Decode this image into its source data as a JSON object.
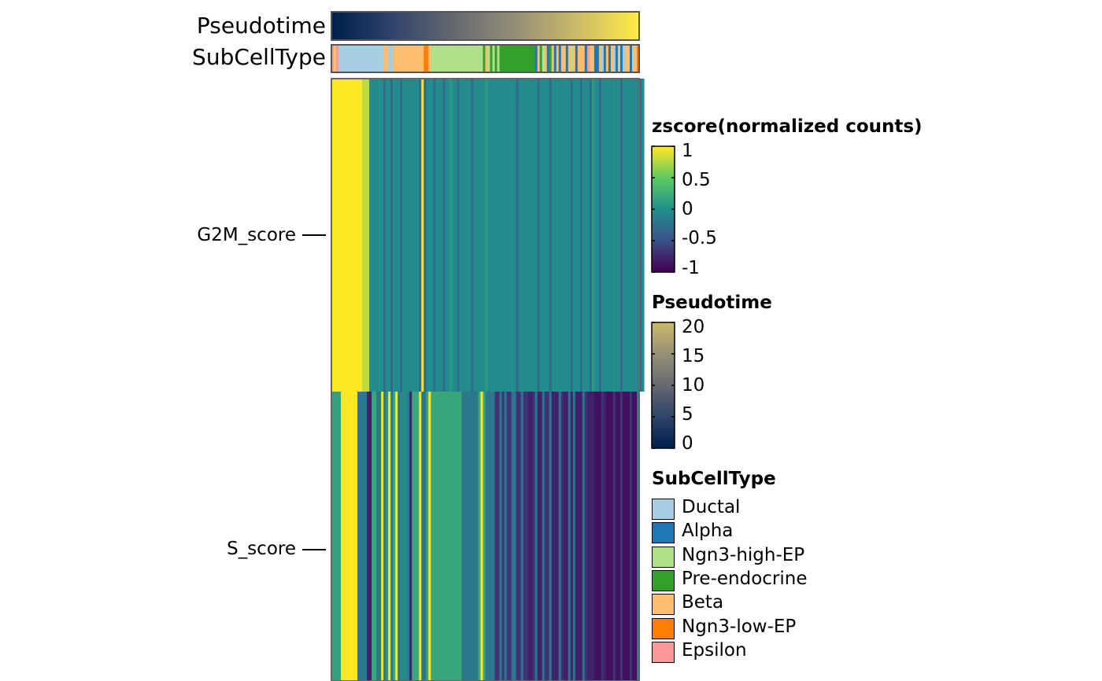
{
  "chart_data": {
    "type": "heatmap",
    "annotations": [
      {
        "name": "Pseudotime",
        "type": "continuous",
        "colormap": [
          "#00204D",
          "#31446B",
          "#666970",
          "#958F78",
          "#CBBA69",
          "#FFEA46"
        ]
      },
      {
        "name": "SubCellType",
        "type": "categorical"
      }
    ],
    "rows": [
      "G2M_score",
      "S_score"
    ],
    "n_cells": 130,
    "cell_pseudotime_range": [
      0,
      20
    ],
    "cell_subcelltype": [
      "Epsilon",
      "Beta",
      "Epsilon",
      "Ductal",
      "Ductal",
      "Ductal",
      "Ductal",
      "Ductal",
      "Ductal",
      "Ductal",
      "Ductal",
      "Ductal",
      "Ductal",
      "Ductal",
      "Ductal",
      "Ductal",
      "Ductal",
      "Ductal",
      "Ductal",
      "Ductal",
      "Ductal",
      "Ductal",
      "Beta",
      "Beta",
      "Ductal",
      "Ductal",
      "Beta",
      "Beta",
      "Beta",
      "Beta",
      "Beta",
      "Beta",
      "Beta",
      "Beta",
      "Beta",
      "Beta",
      "Beta",
      "Beta",
      "Beta",
      "Ngn3-low-EP",
      "Ngn3-low-EP",
      "Beta",
      "Ngn3-high-EP",
      "Ngn3-high-EP",
      "Ngn3-high-EP",
      "Ngn3-high-EP",
      "Ngn3-high-EP",
      "Ngn3-high-EP",
      "Ngn3-high-EP",
      "Ngn3-high-EP",
      "Ngn3-high-EP",
      "Ngn3-high-EP",
      "Ngn3-high-EP",
      "Ngn3-high-EP",
      "Ngn3-high-EP",
      "Ngn3-high-EP",
      "Ngn3-high-EP",
      "Ngn3-high-EP",
      "Ngn3-high-EP",
      "Ngn3-high-EP",
      "Ngn3-high-EP",
      "Ngn3-high-EP",
      "Ngn3-high-EP",
      "Ngn3-high-EP",
      "Pre-endocrine",
      "Beta",
      "Ngn3-high-EP",
      "Pre-endocrine",
      "Ngn3-high-EP",
      "Pre-endocrine",
      "Ngn3-high-EP",
      "Pre-endocrine",
      "Pre-endocrine",
      "Pre-endocrine",
      "Pre-endocrine",
      "Pre-endocrine",
      "Pre-endocrine",
      "Pre-endocrine",
      "Pre-endocrine",
      "Pre-endocrine",
      "Pre-endocrine",
      "Pre-endocrine",
      "Pre-endocrine",
      "Pre-endocrine",
      "Pre-endocrine",
      "Pre-endocrine",
      "Alpha",
      "Beta",
      "Pre-endocrine",
      "Ngn3-high-EP",
      "Beta",
      "Alpha",
      "Pre-endocrine",
      "Beta",
      "Alpha",
      "Beta",
      "Alpha",
      "Beta",
      "Beta",
      "Alpha",
      "Beta",
      "Ngn3-high-EP",
      "Beta",
      "Alpha",
      "Beta",
      "Beta",
      "Beta",
      "Alpha",
      "Epsilon",
      "Beta",
      "Beta",
      "Alpha",
      "Alpha",
      "Beta",
      "Ductal",
      "Alpha",
      "Beta",
      "Alpha",
      "Beta",
      "Ductal",
      "Alpha",
      "Beta",
      "Alpha",
      "Ductal",
      "Beta",
      "Beta",
      "Alpha",
      "Beta",
      "Beta",
      "Ngn3-low-EP"
    ],
    "values": [
      [
        1,
        1,
        1,
        1,
        1,
        1,
        1,
        1,
        1,
        1,
        1,
        1,
        1,
        0.8,
        0.8,
        0.8,
        -0.05,
        -0.05,
        0,
        -0.05,
        0,
        -0.05,
        -0.3,
        0,
        -0.05,
        -0.3,
        0,
        -0.05,
        -0.05,
        -0.3,
        0,
        -0.05,
        -0.05,
        -0.05,
        0,
        -0.05,
        -0.05,
        -0.3,
        1,
        -0.3,
        -0.05,
        0,
        -0.05,
        -0.3,
        0,
        -0.05,
        -0.05,
        -0.3,
        -0.05,
        -0.05,
        0.1,
        -0.05,
        -0.05,
        -0.3,
        -0.05,
        -0.05,
        -0.05,
        -0.05,
        -0.05,
        -0.3,
        -0.05,
        -0.05,
        -0.05,
        -0.05,
        -0.05,
        0.1,
        -0.05,
        -0.05,
        -0.05,
        -0.05,
        -0.05,
        -0.05,
        -0.05,
        -0.05,
        -0.05,
        -0.05,
        0,
        -0.05,
        -0.3,
        -0.05,
        -0.05,
        -0.05,
        -0.05,
        -0.05,
        0,
        -0.05,
        -0.05,
        -0.3,
        -0.05,
        -0.05,
        -0.05,
        -0.05,
        -0.3,
        -0.05,
        -0.05,
        0,
        -0.05,
        -0.05,
        -0.05,
        -0.05,
        -0.05,
        -0.3,
        -0.05,
        -0.05,
        -0.05,
        -0.3,
        -0.05,
        -0.05,
        -0.05,
        -0.3,
        0.1,
        -0.05,
        -0.05,
        -0.3,
        -0.05,
        -0.05,
        -0.05,
        -0.05,
        -0.05,
        0,
        -0.05,
        -0.05,
        -0.3,
        -0.05,
        -0.05,
        -0.05,
        -0.05,
        -0.05,
        -0.05,
        -0.05,
        -0.3,
        -0.05
      ],
      [
        0.15,
        0.15,
        0.15,
        0.15,
        1,
        1,
        1,
        1,
        1,
        1,
        1,
        -0.2,
        -0.2,
        -0.2,
        -0.2,
        -0.8,
        -0.8,
        0.2,
        0.2,
        -0.2,
        -0.2,
        1,
        -0.2,
        0.05,
        1,
        -0.2,
        0.2,
        1,
        -0.2,
        -0.05,
        -0.05,
        -0.05,
        -0.2,
        -0.8,
        0.2,
        0.2,
        0.2,
        1,
        -0.2,
        -0.2,
        0.2,
        1,
        0.2,
        0.2,
        0.2,
        0.2,
        0.2,
        0.2,
        0.2,
        0.2,
        0.2,
        0.2,
        0.2,
        0.2,
        0.2,
        -0.2,
        -0.2,
        -0.2,
        -0.2,
        -0.2,
        -0.2,
        -0.2,
        0.2,
        1,
        0.2,
        -0.2,
        -0.2,
        -0.2,
        -0.2,
        -0.7,
        -0.7,
        -0.2,
        -0.7,
        -0.2,
        -0.7,
        -0.7,
        -0.2,
        -0.2,
        -0.7,
        -0.7,
        -0.2,
        -0.7,
        -0.7,
        -0.8,
        -0.8,
        -0.7,
        -0.2,
        -0.8,
        -0.8,
        -0.2,
        -0.7,
        -0.7,
        -0.2,
        -0.8,
        -0.8,
        -0.8,
        -0.2,
        -0.7,
        -0.8,
        -0.8,
        -0.2,
        -0.8,
        -0.2,
        -0.8,
        -0.8,
        -0.8,
        -0.2,
        -0.7,
        -0.8,
        -0.8,
        -0.8,
        -0.9,
        -0.9,
        -0.9,
        -0.7,
        -0.8,
        -0.9,
        -0.9,
        -0.9,
        -0.7,
        -0.9,
        -0.9,
        -0.7,
        -0.9,
        -0.9,
        -0.9,
        -0.7,
        -0.9,
        -0.9,
        -0.2
      ]
    ]
  },
  "heatmap": {
    "anno_labels": [
      "Pseudotime",
      "SubCellType"
    ],
    "row_labels": [
      "G2M_score",
      "S_score"
    ]
  },
  "legends": {
    "zscore": {
      "title": "zscore(normalized counts)",
      "ticks": [
        "1",
        "0.5",
        "0",
        "-0.5",
        "-1"
      ],
      "range": [
        -1,
        1
      ]
    },
    "pseudotime": {
      "title": "Pseudotime",
      "ticks": [
        "20",
        "15",
        "10",
        "5",
        "0"
      ],
      "range": [
        0,
        20
      ]
    },
    "subcelltype": {
      "title": "SubCellType",
      "items": [
        {
          "label": "Ductal",
          "color": "#A6CEE3"
        },
        {
          "label": "Alpha",
          "color": "#1F78B4"
        },
        {
          "label": "Ngn3-high-EP",
          "color": "#B2DF8A"
        },
        {
          "label": "Pre-endocrine",
          "color": "#33A02C"
        },
        {
          "label": "Beta",
          "color": "#FDBF6F"
        },
        {
          "label": "Ngn3-low-EP",
          "color": "#FF7F00"
        },
        {
          "label": "Epsilon",
          "color": "#FB9A99"
        }
      ]
    }
  },
  "colors": {
    "viridis": [
      "#440154",
      "#3B528B",
      "#21908C",
      "#5DC863",
      "#FDE725"
    ],
    "cividis": [
      "#00204D",
      "#31446B",
      "#666970",
      "#958F78",
      "#CBBA69"
    ]
  }
}
